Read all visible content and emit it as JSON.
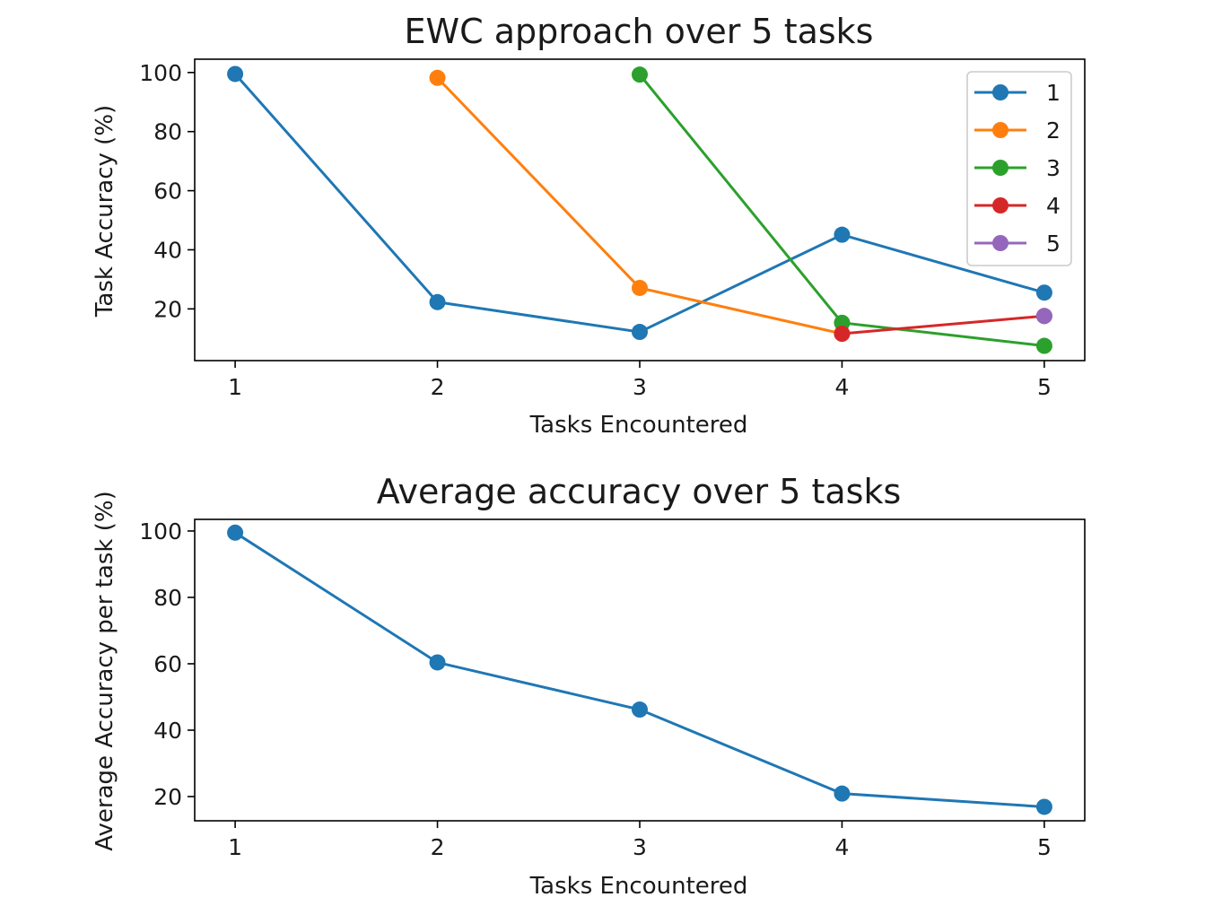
{
  "chart_data": [
    {
      "type": "line",
      "title": "EWC approach over 5 tasks",
      "xlabel": "Tasks Encountered",
      "ylabel": "Task Accuracy (%)",
      "xlim": [
        0.8,
        5.2
      ],
      "ylim": [
        2.5,
        104.5
      ],
      "xticks": [
        "1",
        "2",
        "3",
        "4",
        "5"
      ],
      "yticks": [
        "20",
        "40",
        "60",
        "80",
        "100"
      ],
      "grid": false,
      "legend": {
        "placement": "top-right"
      },
      "series": [
        {
          "name": "1",
          "color": "#1f77b4",
          "x": [
            1,
            2,
            3,
            4,
            5
          ],
          "y": [
            99.5,
            22.3,
            12.2,
            45.1,
            25.5
          ]
        },
        {
          "name": "2",
          "color": "#ff7f0e",
          "x": [
            2,
            3,
            4
          ],
          "y": [
            98.2,
            27.1,
            11.6
          ]
        },
        {
          "name": "3",
          "color": "#2ca02c",
          "x": [
            3,
            4,
            5
          ],
          "y": [
            99.3,
            15.3,
            7.5
          ]
        },
        {
          "name": "4",
          "color": "#d62728",
          "x": [
            4,
            5
          ],
          "y": [
            11.6,
            17.6
          ]
        },
        {
          "name": "5",
          "color": "#9467bd",
          "x": [
            5
          ],
          "y": [
            17.6
          ]
        }
      ]
    },
    {
      "type": "line",
      "title": "Average accuracy over 5 tasks",
      "xlabel": "Tasks Encountered",
      "ylabel": "Average Accuracy per task (%)",
      "xlim": [
        0.8,
        5.2
      ],
      "ylim": [
        12.7,
        103.5
      ],
      "xticks": [
        "1",
        "2",
        "3",
        "4",
        "5"
      ],
      "yticks": [
        "20",
        "40",
        "60",
        "80",
        "100"
      ],
      "grid": false,
      "series": [
        {
          "color": "#1f77b4",
          "x": [
            1,
            2,
            3,
            4,
            5
          ],
          "y": [
            99.5,
            60.4,
            46.2,
            20.9,
            16.9
          ]
        }
      ]
    }
  ]
}
